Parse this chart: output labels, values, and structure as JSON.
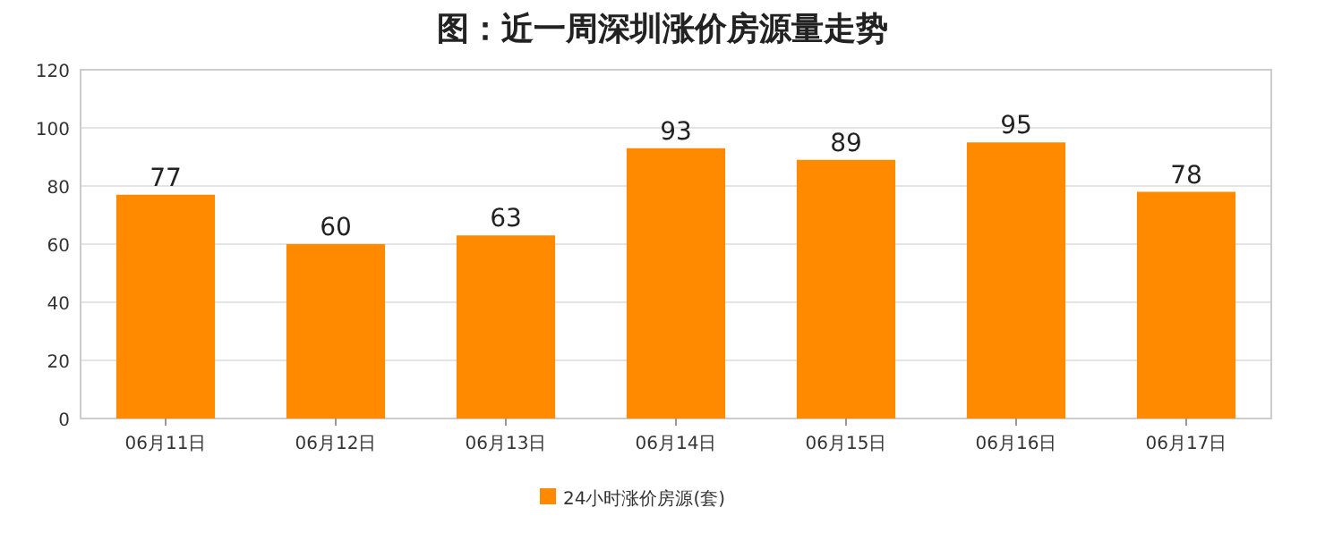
{
  "chart_data": {
    "type": "bar",
    "title": "图：近一周深圳涨价房源量走势",
    "categories": [
      "06月11日",
      "06月12日",
      "06月13日",
      "06月14日",
      "06月15日",
      "06月16日",
      "06月17日"
    ],
    "series": [
      {
        "name": "24小时涨价房源(套)",
        "color": "#ff8a00",
        "values": [
          77,
          60,
          63,
          93,
          89,
          95,
          78
        ]
      }
    ],
    "ylim": [
      0,
      120
    ],
    "yticks": [
      0,
      20,
      40,
      60,
      80,
      100,
      120
    ],
    "grid": "y",
    "legend": "bottom",
    "data_labels": true
  }
}
